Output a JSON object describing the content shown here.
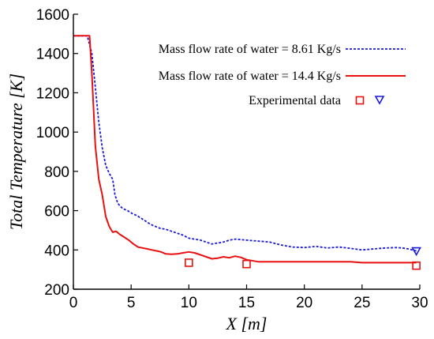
{
  "chart_data": {
    "type": "line",
    "xlabel": "X [m]",
    "ylabel": "Total Temperature [K]",
    "xlim": [
      0,
      30
    ],
    "ylim": [
      200,
      1600
    ],
    "xticks": [
      0,
      5,
      10,
      15,
      20,
      25,
      30
    ],
    "yticks": [
      200,
      400,
      600,
      800,
      1000,
      1200,
      1400,
      1600
    ],
    "legend_position": "top-right",
    "series": [
      {
        "name": "Mass flow rate of water = 8.61 Kg/s",
        "style": "dotted",
        "color": "#1a1adb",
        "x": [
          0,
          1.2,
          1.6,
          1.9,
          2.2,
          2.5,
          2.8,
          3.1,
          3.4,
          3.6,
          3.8,
          4.0,
          4.3,
          4.7,
          5.1,
          5.5,
          5.9,
          6.3,
          6.7,
          7.1,
          7.5,
          8.0,
          8.5,
          9.0,
          9.5,
          10.0,
          11.0,
          12.0,
          13.0,
          13.5,
          14.0,
          15.0,
          16.0,
          17.0,
          18.0,
          19.0,
          20.0,
          21.0,
          22.0,
          23.0,
          24.0,
          25.0,
          26.0,
          27.0,
          28.0,
          28.5,
          29.0,
          29.5,
          29.7
        ],
        "y": [
          1490,
          1490,
          1400,
          1230,
          1050,
          920,
          830,
          790,
          760,
          680,
          645,
          625,
          610,
          600,
          585,
          575,
          560,
          545,
          530,
          520,
          510,
          505,
          495,
          485,
          475,
          460,
          450,
          430,
          440,
          450,
          455,
          450,
          445,
          440,
          425,
          415,
          412,
          418,
          410,
          415,
          408,
          400,
          405,
          410,
          412,
          410,
          405,
          398,
          395
        ]
      },
      {
        "name": "Mass flow rate of water = 14.4 Kg/s",
        "style": "solid",
        "color": "#e81010",
        "x": [
          0,
          1.4,
          1.6,
          1.9,
          2.2,
          2.5,
          2.8,
          3.1,
          3.4,
          3.7,
          4.0,
          4.4,
          4.8,
          5.2,
          5.6,
          6.0,
          6.4,
          6.8,
          7.2,
          7.6,
          8.0,
          8.5,
          9.0,
          9.5,
          10.0,
          10.5,
          11.0,
          11.5,
          12.0,
          12.5,
          13.0,
          13.5,
          14.0,
          14.5,
          15.0,
          16.0,
          17.0,
          18.0,
          20.0,
          22.0,
          24.0,
          25.0,
          26.0,
          28.0,
          29.0,
          29.7
        ],
        "y": [
          1490,
          1490,
          1300,
          930,
          760,
          680,
          570,
          520,
          490,
          495,
          480,
          465,
          450,
          430,
          415,
          410,
          405,
          400,
          395,
          390,
          380,
          378,
          380,
          385,
          390,
          385,
          375,
          365,
          355,
          358,
          365,
          360,
          368,
          362,
          350,
          340,
          340,
          340,
          340,
          340,
          340,
          335,
          335,
          335,
          335,
          335
        ]
      }
    ],
    "experimental": {
      "label": "Experimental data",
      "squares": {
        "color": "#e81010",
        "x": [
          10,
          15,
          29.7
        ],
        "y": [
          335,
          328,
          320
        ]
      },
      "triangles": {
        "color": "#1a1adb",
        "x": [
          29.7
        ],
        "y": [
          395
        ]
      }
    }
  }
}
